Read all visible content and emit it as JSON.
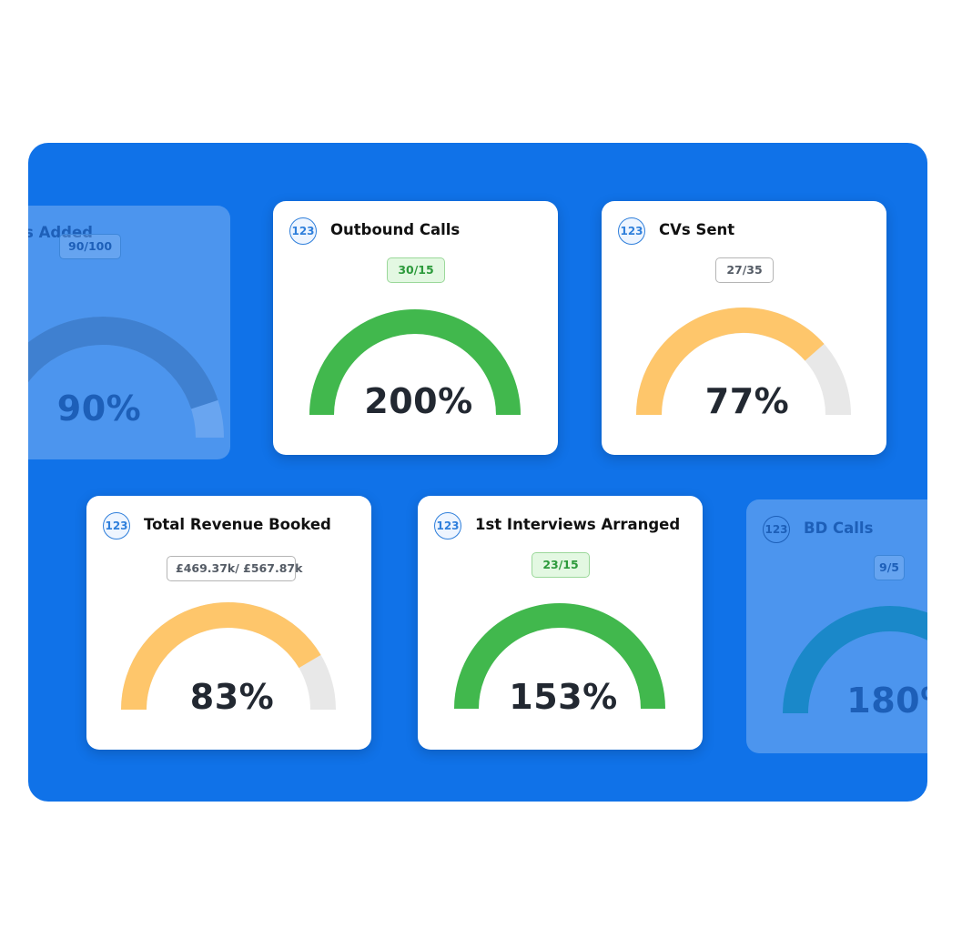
{
  "icon_label": "123",
  "cards": {
    "candidates_added": {
      "title": "s Added",
      "ratio": "90/100",
      "percent_label": "90%",
      "fraction": 0.9,
      "state": "faded"
    },
    "outbound_calls": {
      "title": "Outbound Calls",
      "ratio": "30/15",
      "percent_label": "200%",
      "fraction": 1.0,
      "state": "met"
    },
    "cvs_sent": {
      "title": "CVs Sent",
      "ratio": "27/35",
      "percent_label": "77%",
      "fraction": 0.77,
      "state": "partial"
    },
    "total_revenue": {
      "title": "Total Revenue Booked",
      "ratio": "£469.37k/ £567.87k",
      "percent_label": "83%",
      "fraction": 0.83,
      "state": "partial"
    },
    "first_interviews": {
      "title": "1st Interviews Arranged",
      "ratio": "23/15",
      "percent_label": "153%",
      "fraction": 1.0,
      "state": "met"
    },
    "bd_calls": {
      "title": "BD Calls",
      "ratio": "9/5",
      "percent_label": "180%",
      "fraction": 1.0,
      "state": "faded"
    }
  },
  "colors": {
    "panel": "#1072e8",
    "met": "#41b84d",
    "partial": "#fec66b",
    "track": "#e8e8e8",
    "faded_fill": "#3f80d0",
    "faded_track": "#69a5f0",
    "faded_fill_bd": "#1a88c9"
  }
}
